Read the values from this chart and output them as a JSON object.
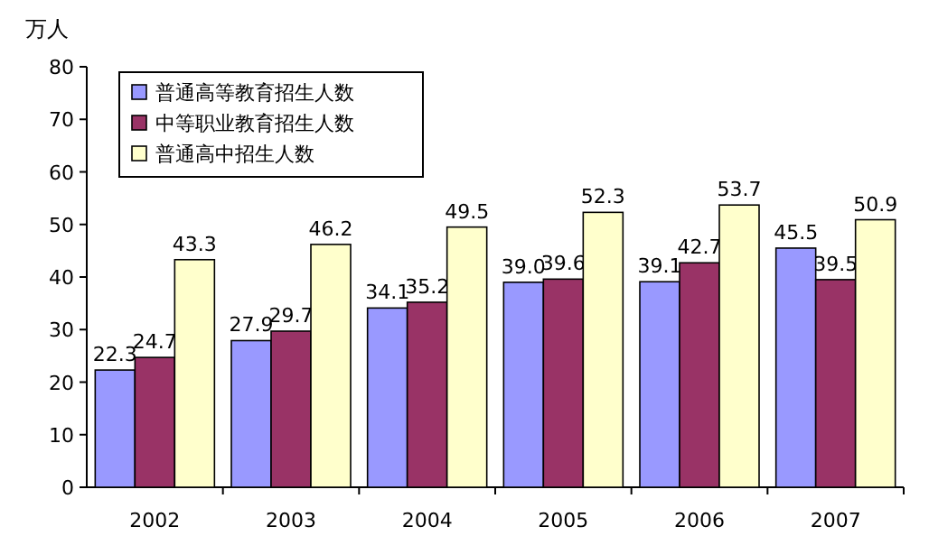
{
  "chart_data": {
    "type": "bar",
    "ylabel": "万人",
    "categories": [
      "2002",
      "2003",
      "2004",
      "2005",
      "2006",
      "2007"
    ],
    "series": [
      {
        "name": "普通高等教育招生人数",
        "color": "#9999ff",
        "values": [
          22.3,
          27.9,
          34.1,
          39.0,
          39.1,
          45.5
        ],
        "value_labels": [
          "22.3",
          "27.9",
          "34.1",
          "39.0",
          "39.1",
          "45.5"
        ]
      },
      {
        "name": "中等职业教育招生人数",
        "color": "#993366",
        "values": [
          24.7,
          29.7,
          35.2,
          39.6,
          42.7,
          39.5
        ],
        "value_labels": [
          "24.7",
          "29.7",
          "35.2",
          "39.6",
          "42.7",
          "39.5"
        ]
      },
      {
        "name": "普通高中招生人数",
        "color": "#ffffcc",
        "values": [
          43.3,
          46.2,
          49.5,
          52.3,
          53.7,
          50.9
        ],
        "value_labels": [
          "43.3",
          "46.2",
          "49.5",
          "52.3",
          "53.7",
          "50.9"
        ]
      }
    ],
    "ylim": [
      0,
      80
    ],
    "yticks": [
      0,
      10,
      20,
      30,
      40,
      50,
      60,
      70,
      80
    ],
    "legend": "top left",
    "grid": false
  }
}
